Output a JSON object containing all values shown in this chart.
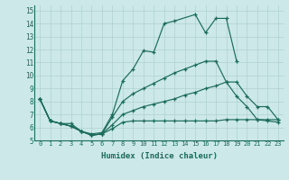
{
  "xlabel": "Humidex (Indice chaleur)",
  "background_color": "#cce8e8",
  "line_color": "#1a6b5a",
  "grid_color": "#b0d0d0",
  "xlim": [
    -0.5,
    23.5
  ],
  "ylim": [
    5,
    15.4
  ],
  "xticks": [
    0,
    1,
    2,
    3,
    4,
    5,
    6,
    7,
    8,
    9,
    10,
    11,
    12,
    13,
    14,
    15,
    16,
    17,
    18,
    19,
    20,
    21,
    22,
    23
  ],
  "yticks": [
    5,
    6,
    7,
    8,
    9,
    10,
    11,
    12,
    13,
    14,
    15
  ],
  "line1_x": [
    0,
    1,
    2,
    3,
    4,
    5,
    6,
    7,
    8,
    9,
    10,
    11,
    12,
    13,
    15,
    16,
    17,
    18,
    19
  ],
  "line1_y": [
    8.2,
    6.5,
    6.3,
    6.3,
    5.7,
    5.5,
    5.6,
    7.0,
    9.6,
    10.5,
    11.9,
    11.8,
    14.0,
    14.2,
    14.7,
    13.3,
    14.4,
    14.4,
    11.1
  ],
  "line2_x": [
    0,
    1,
    2,
    3,
    4,
    5,
    6,
    7,
    8,
    9,
    10,
    11,
    12,
    13,
    14,
    15,
    16,
    17,
    18,
    19,
    20,
    21,
    22,
    23
  ],
  "line2_y": [
    8.2,
    6.5,
    6.3,
    6.1,
    5.7,
    5.4,
    5.5,
    6.8,
    8.0,
    8.6,
    9.0,
    9.4,
    9.8,
    10.2,
    10.5,
    10.8,
    11.1,
    11.1,
    9.5,
    8.4,
    7.6,
    6.6,
    6.6,
    6.6
  ],
  "line3_x": [
    0,
    1,
    2,
    3,
    4,
    5,
    6,
    7,
    8,
    9,
    10,
    11,
    12,
    13,
    14,
    15,
    16,
    17,
    18,
    19,
    20,
    21,
    22,
    23
  ],
  "line3_y": [
    8.2,
    6.5,
    6.3,
    6.1,
    5.7,
    5.4,
    5.5,
    6.2,
    7.0,
    7.3,
    7.6,
    7.8,
    8.0,
    8.2,
    8.5,
    8.7,
    9.0,
    9.2,
    9.5,
    9.5,
    8.4,
    7.6,
    7.6,
    6.6
  ],
  "line4_x": [
    0,
    1,
    2,
    3,
    4,
    5,
    6,
    7,
    8,
    9,
    10,
    11,
    12,
    13,
    14,
    15,
    16,
    17,
    18,
    19,
    20,
    21,
    22,
    23
  ],
  "line4_y": [
    8.2,
    6.5,
    6.3,
    6.1,
    5.7,
    5.4,
    5.5,
    5.9,
    6.4,
    6.5,
    6.5,
    6.5,
    6.5,
    6.5,
    6.5,
    6.5,
    6.5,
    6.5,
    6.6,
    6.6,
    6.6,
    6.6,
    6.5,
    6.4
  ]
}
